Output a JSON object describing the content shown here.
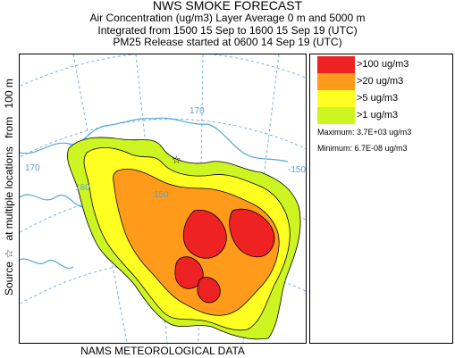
{
  "header": {
    "title": "NWS SMOKE FORECAST",
    "line2": "Air Concentration (ug/m3) Layer Average    0 m and  5000 m",
    "line3": "Integrated from 1500 15 Sep to 1600 15 Sep 19 (UTC)",
    "line4": "PM25 Release started at 0600 14 Sep 19 (UTC)"
  },
  "side_label": {
    "source": "Source ☆",
    "locations": "at multiple locations",
    "from": "from",
    "height": "100 m"
  },
  "map": {
    "grid_labels": [
      "170",
      "160",
      "150",
      "170",
      "-150"
    ],
    "source_marker": "☆"
  },
  "legend": {
    "items": [
      {
        "label": ">100 ug/m3",
        "color": "#ee2222"
      },
      {
        "label": ">20 ug/m3",
        "color": "#ff9a1a"
      },
      {
        "label": ">5 ug/m3",
        "color": "#ffff22"
      },
      {
        "label": ">1 ug/m3",
        "color": "#ccf522"
      }
    ],
    "maximum": "Maximum: 3.7E+03 ug/m3",
    "minimum": "Minimum: 6.7E-08 ug/m3"
  },
  "footer": "NAMS METEOROLOGICAL DATA",
  "colors": {
    "land": "#ffffff",
    "coast": "#4fa8d8",
    "grid": "#6fa8dc",
    "contour": "#000000"
  }
}
